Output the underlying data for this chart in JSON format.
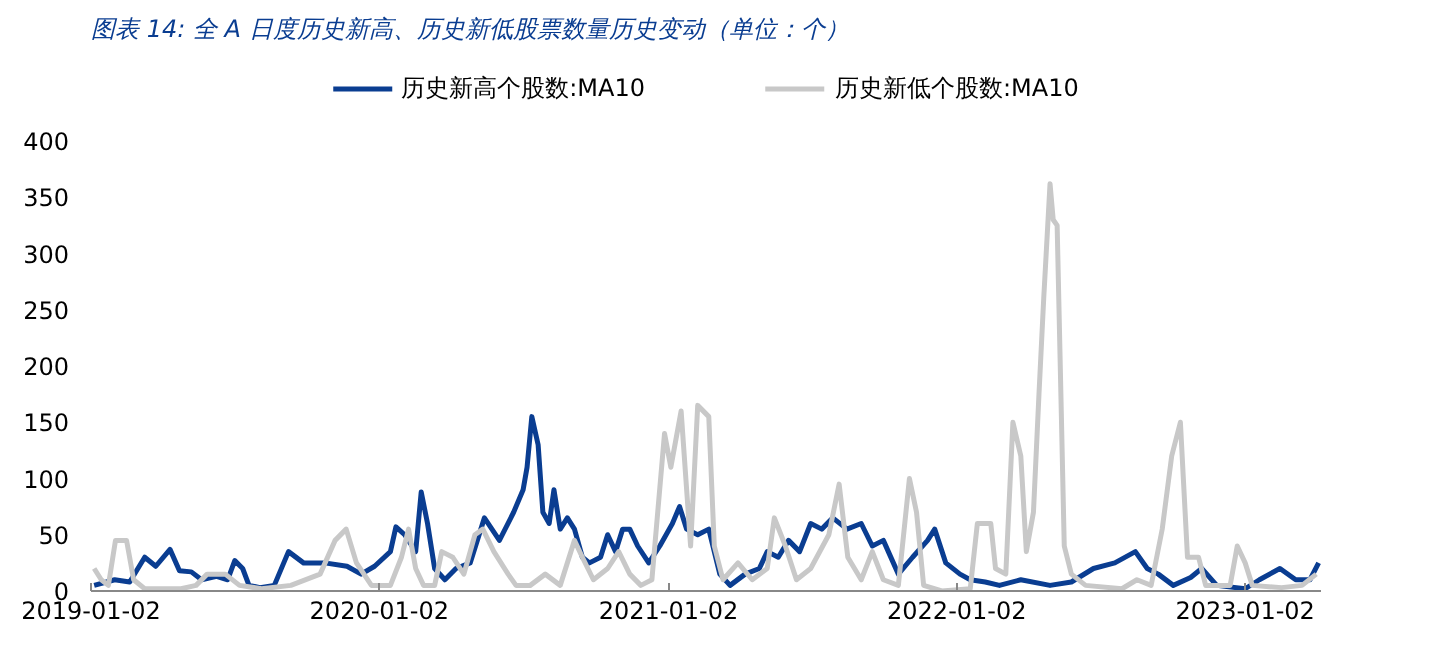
{
  "chart_data": {
    "type": "line",
    "title": "图表 14: 全 A 日度历史新高、历史新低股票数量历史变动（单位：个）",
    "xlim": [
      "2019-01-02",
      "2023-04-08"
    ],
    "xticks": [
      "2019-01-02",
      "2020-01-02",
      "2021-01-02",
      "2022-01-02",
      "2023-01-02"
    ],
    "ylim": [
      0,
      400
    ],
    "yticks": [
      0,
      50,
      100,
      150,
      200,
      250,
      300,
      350,
      400
    ],
    "grid": false,
    "legend": "top",
    "line_style": "solid",
    "marker": "none",
    "series": [
      {
        "name": "历史新高个股数:MA10",
        "color": "#0a3d91",
        "x": [
          "2019-01-06",
          "2019-02-01",
          "2019-02-20",
          "2019-03-11",
          "2019-03-25",
          "2019-04-12",
          "2019-04-24",
          "2019-05-09",
          "2019-05-22",
          "2019-06-10",
          "2019-06-24",
          "2019-07-03",
          "2019-07-13",
          "2019-07-21",
          "2019-08-04",
          "2019-08-22",
          "2019-09-09",
          "2019-09-28",
          "2019-10-25",
          "2019-11-22",
          "2019-12-10",
          "2019-12-27",
          "2020-01-16",
          "2020-01-23",
          "2020-02-03",
          "2020-02-17",
          "2020-02-24",
          "2020-03-03",
          "2020-03-12",
          "2020-03-25",
          "2020-04-08",
          "2020-04-26",
          "2020-05-14",
          "2020-06-02",
          "2020-06-20",
          "2020-07-02",
          "2020-07-07",
          "2020-07-13",
          "2020-07-21",
          "2020-07-27",
          "2020-08-04",
          "2020-08-10",
          "2020-08-18",
          "2020-08-27",
          "2020-09-05",
          "2020-09-15",
          "2020-09-24",
          "2020-10-08",
          "2020-10-17",
          "2020-10-27",
          "2020-11-05",
          "2020-11-14",
          "2020-11-24",
          "2020-12-08",
          "2020-12-22",
          "2021-01-07",
          "2021-01-16",
          "2021-01-25",
          "2021-02-08",
          "2021-02-22",
          "2021-03-08",
          "2021-03-21",
          "2021-04-09",
          "2021-04-27",
          "2021-05-07",
          "2021-05-21",
          "2021-06-03",
          "2021-06-17",
          "2021-07-01",
          "2021-07-15",
          "2021-07-29",
          "2021-08-16",
          "2021-09-03",
          "2021-09-17",
          "2021-10-01",
          "2021-10-20",
          "2021-11-07",
          "2021-11-26",
          "2021-12-05",
          "2021-12-19",
          "2022-01-06",
          "2022-01-19",
          "2022-02-07",
          "2022-02-25",
          "2022-03-24",
          "2022-04-30",
          "2022-05-27",
          "2022-06-24",
          "2022-07-21",
          "2022-08-16",
          "2022-08-31",
          "2022-09-14",
          "2022-10-03",
          "2022-10-25",
          "2022-11-08",
          "2022-11-27",
          "2023-01-02",
          "2023-01-20",
          "2023-02-15",
          "2023-03-07",
          "2023-03-25",
          "2023-04-05"
        ],
        "values": [
          5,
          10,
          8,
          30,
          22,
          37,
          18,
          17,
          10,
          13,
          10,
          27,
          20,
          5,
          3,
          5,
          35,
          25,
          25,
          22,
          15,
          22,
          35,
          57,
          50,
          35,
          88,
          60,
          20,
          10,
          20,
          25,
          65,
          45,
          70,
          90,
          110,
          155,
          130,
          70,
          60,
          90,
          55,
          65,
          55,
          30,
          25,
          30,
          50,
          35,
          55,
          55,
          40,
          25,
          40,
          60,
          75,
          55,
          50,
          55,
          15,
          5,
          15,
          20,
          35,
          30,
          45,
          35,
          60,
          55,
          65,
          55,
          60,
          40,
          45,
          15,
          30,
          45,
          55,
          25,
          15,
          10,
          8,
          5,
          10,
          5,
          8,
          20,
          25,
          35,
          20,
          15,
          5,
          12,
          20,
          5,
          2,
          10,
          20,
          10,
          10,
          25
        ]
      },
      {
        "name": "历史新低个股数:MA10",
        "color": "#c8c8c8",
        "x": [
          "2019-01-06",
          "2019-01-15",
          "2019-01-24",
          "2019-02-02",
          "2019-02-16",
          "2019-02-25",
          "2019-03-11",
          "2019-04-26",
          "2019-05-15",
          "2019-05-29",
          "2019-06-21",
          "2019-07-09",
          "2019-08-06",
          "2019-09-12",
          "2019-10-19",
          "2019-11-07",
          "2019-11-21",
          "2019-12-04",
          "2019-12-23",
          "2020-01-16",
          "2020-01-30",
          "2020-02-08",
          "2020-02-17",
          "2020-02-27",
          "2020-03-12",
          "2020-03-21",
          "2020-04-04",
          "2020-04-18",
          "2020-05-02",
          "2020-05-12",
          "2020-05-26",
          "2020-06-13",
          "2020-06-23",
          "2020-07-11",
          "2020-07-30",
          "2020-08-18",
          "2020-09-05",
          "2020-09-15",
          "2020-09-29",
          "2020-10-17",
          "2020-10-31",
          "2020-11-14",
          "2020-11-28",
          "2020-12-12",
          "2020-12-28",
          "2021-01-05",
          "2021-01-18",
          "2021-01-30",
          "2021-02-08",
          "2021-02-22",
          "2021-03-01",
          "2021-03-12",
          "2021-03-31",
          "2021-04-18",
          "2021-05-07",
          "2021-05-16",
          "2021-05-30",
          "2021-06-13",
          "2021-07-01",
          "2021-07-24",
          "2021-08-06",
          "2021-08-17",
          "2021-09-03",
          "2021-09-17",
          "2021-10-01",
          "2021-10-20",
          "2021-11-03",
          "2021-11-12",
          "2021-11-21",
          "2021-12-14",
          "2022-01-19",
          "2022-01-28",
          "2022-02-14",
          "2022-02-20",
          "2022-03-05",
          "2022-03-14",
          "2022-03-24",
          "2022-03-31",
          "2022-04-09",
          "2022-04-16",
          "2022-04-22",
          "2022-04-30",
          "2022-05-04",
          "2022-05-09",
          "2022-05-18",
          "2022-05-27",
          "2022-06-14",
          "2022-07-30",
          "2022-08-18",
          "2022-09-05",
          "2022-09-19",
          "2022-10-01",
          "2022-10-12",
          "2022-10-21",
          "2022-11-04",
          "2022-11-13",
          "2022-12-14",
          "2022-12-23",
          "2023-01-02",
          "2023-01-11",
          "2023-02-17",
          "2023-03-15",
          "2023-04-02"
        ],
        "values": [
          20,
          10,
          5,
          45,
          45,
          10,
          2,
          2,
          5,
          15,
          15,
          5,
          2,
          5,
          15,
          45,
          55,
          25,
          5,
          5,
          30,
          55,
          20,
          5,
          5,
          35,
          30,
          15,
          50,
          55,
          35,
          15,
          5,
          5,
          15,
          5,
          45,
          30,
          10,
          20,
          35,
          15,
          5,
          10,
          140,
          110,
          160,
          40,
          165,
          155,
          40,
          10,
          25,
          10,
          20,
          65,
          40,
          10,
          20,
          50,
          95,
          30,
          10,
          35,
          10,
          5,
          100,
          70,
          5,
          0,
          2,
          60,
          60,
          20,
          15,
          150,
          120,
          35,
          70,
          175,
          260,
          362,
          330,
          325,
          40,
          15,
          5,
          2,
          10,
          5,
          55,
          120,
          150,
          30,
          30,
          5,
          5,
          40,
          25,
          5,
          3,
          5,
          15
        ]
      }
    ]
  }
}
